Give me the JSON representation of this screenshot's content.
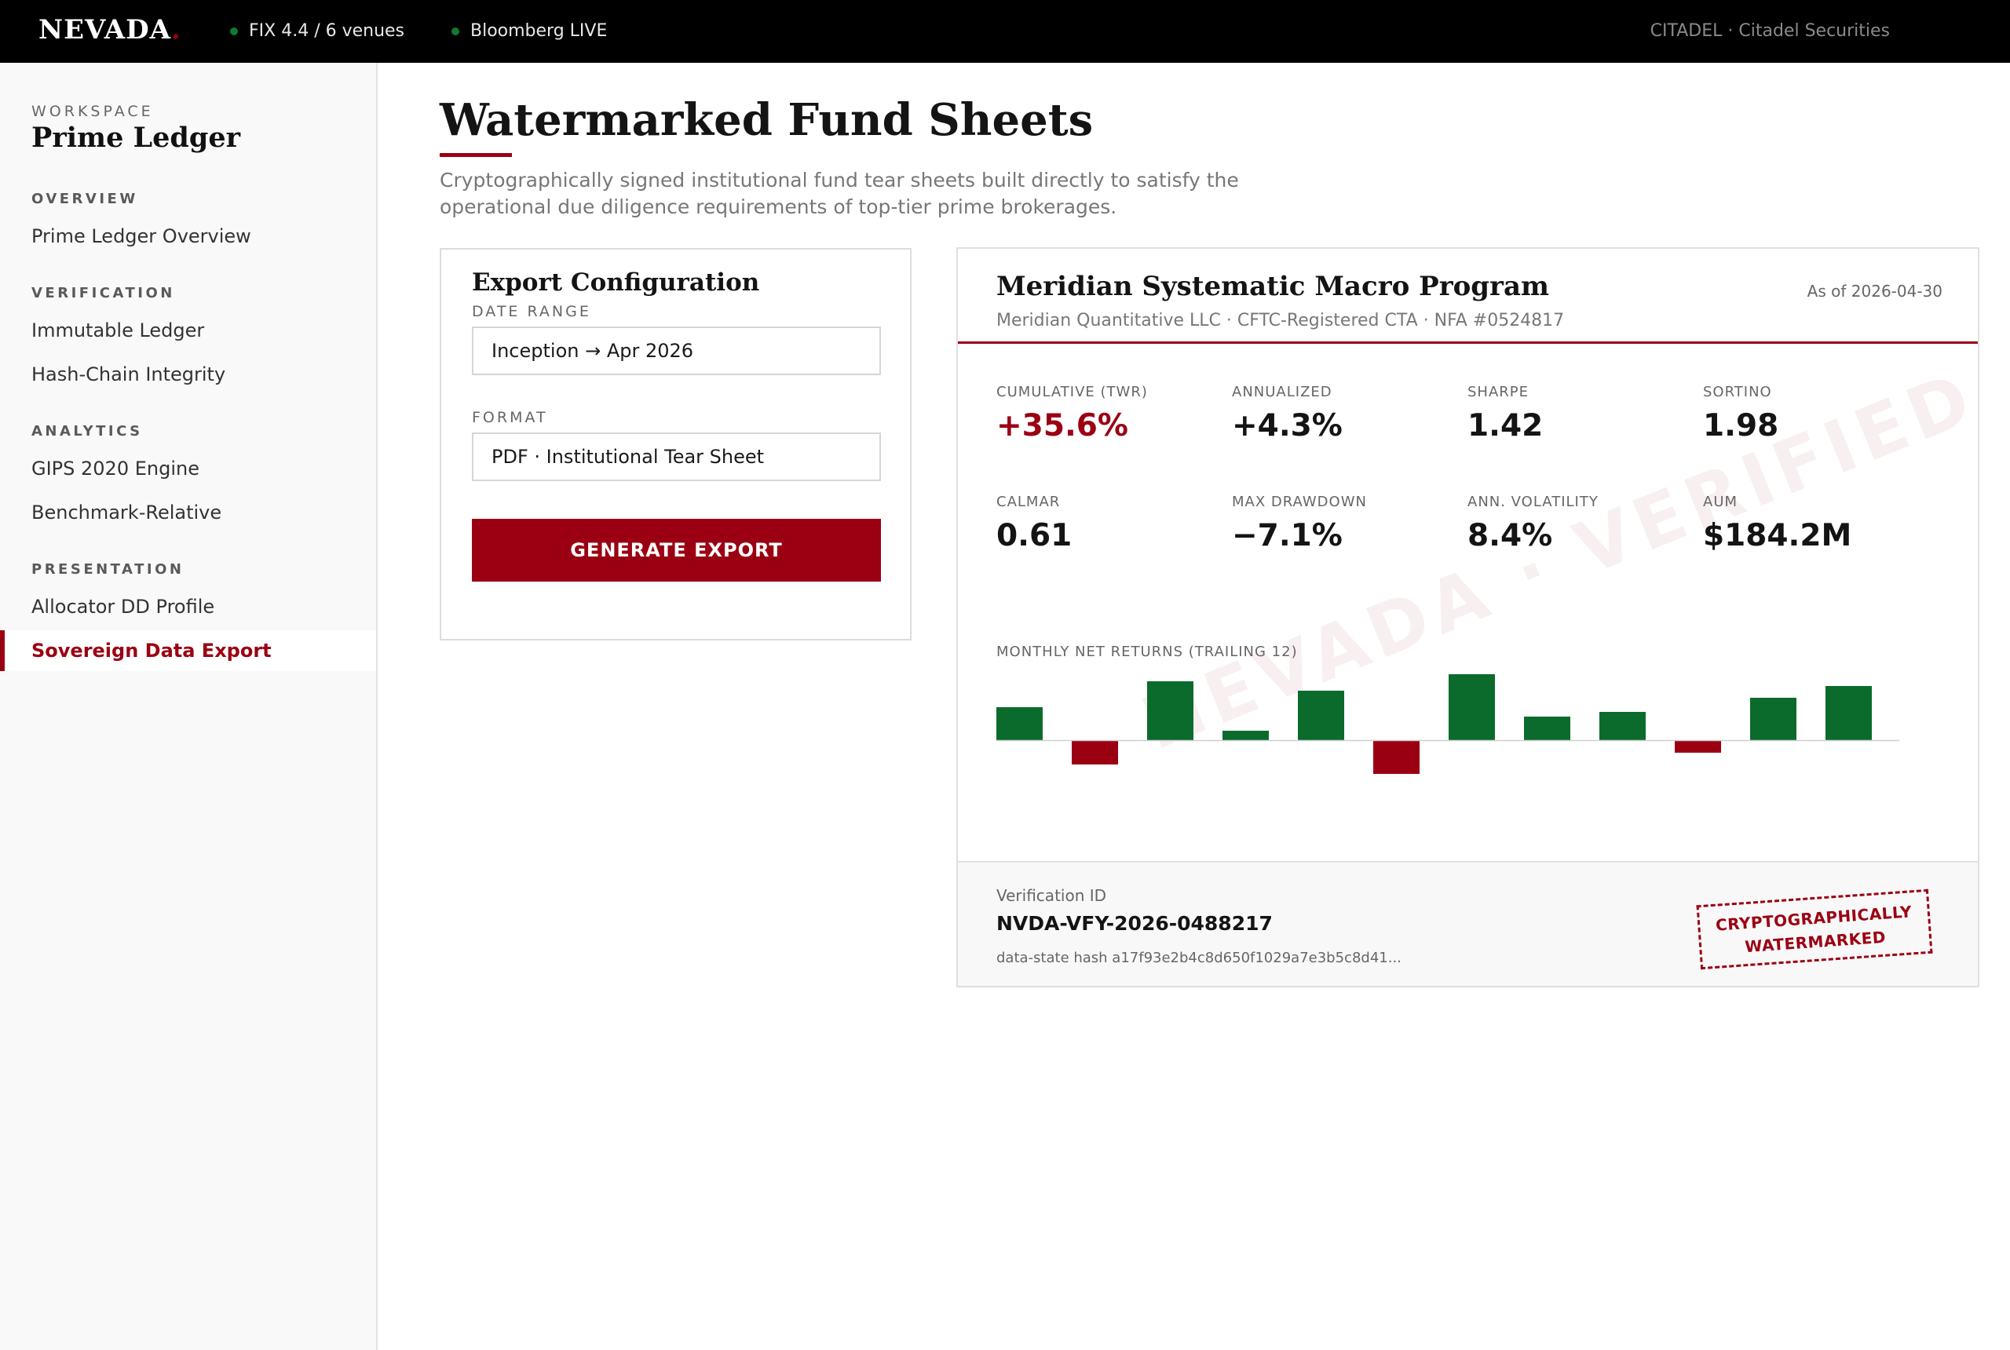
{
  "topbar": {
    "logo": "NEVADA",
    "logo_dot": ".",
    "status_fix": "FIX 4.4 / 6 venues",
    "status_bloomberg": "Bloomberg LIVE",
    "account": "CITADEL · Citadel Securities",
    "status_color": "#0e7a2e"
  },
  "sidebar": {
    "workspace_label": "WORKSPACE",
    "workspace_title": "Prime Ledger",
    "sections": [
      {
        "title": "OVERVIEW",
        "items": [
          "Prime Ledger Overview"
        ]
      },
      {
        "title": "VERIFICATION",
        "items": [
          "Immutable Ledger",
          "Hash-Chain Integrity"
        ]
      },
      {
        "title": "ANALYTICS",
        "items": [
          "GIPS 2020 Engine",
          "Benchmark-Relative"
        ]
      },
      {
        "title": "PRESENTATION",
        "items": [
          "Allocator DD Profile",
          "Sovereign Data Export"
        ]
      }
    ],
    "active_item": "Sovereign Data Export"
  },
  "main": {
    "title": "Watermarked Fund Sheets",
    "subtitle": "Cryptographically signed institutional fund tear sheets built directly to satisfy the operational due diligence requirements of top-tier prime brokerages."
  },
  "config": {
    "title": "Export Configuration",
    "date_range_label": "DATE RANGE",
    "date_range_value": "Inception → Apr 2026",
    "format_label": "FORMAT",
    "format_value": "PDF · Institutional Tear Sheet",
    "generate_label": "GENERATE EXPORT"
  },
  "sheet": {
    "fund_name": "Meridian Systematic Macro Program",
    "as_of": "As of 2026-04-30",
    "meta": "Meridian Quantitative LLC · CFTC-Registered CTA · NFA #0524817",
    "metrics": [
      {
        "label": "CUMULATIVE (TWR)",
        "value": "+35.6%"
      },
      {
        "label": "ANNUALIZED",
        "value": "+4.3%"
      },
      {
        "label": "SHARPE",
        "value": "1.42"
      },
      {
        "label": "SORTINO",
        "value": "1.98"
      },
      {
        "label": "CALMAR",
        "value": "0.61"
      },
      {
        "label": "MAX DRAWDOWN",
        "value": "−7.1%"
      },
      {
        "label": "ANN. VOLATILITY",
        "value": "8.4%"
      },
      {
        "label": "AUM",
        "value": "$184.2M"
      }
    ],
    "chart_label": "MONTHLY NET RETURNS (TRAILING 12)",
    "watermark": "NEVADA · VERIFIED",
    "verification_label": "Verification ID",
    "verification_id": "NVDA-VFY-2026-0488217",
    "hash": "data-state hash a17f93e2b4c8d650f1029a7e3b5c8d41...",
    "stamp_line1": "CRYPTOGRAPHICALLY",
    "stamp_line2": "WATERMARKED",
    "positive_color": "#0b6b2c",
    "negative_color": "#9b0012"
  },
  "chart_data": {
    "type": "bar",
    "title": "MONTHLY NET RETURNS (TRAILING 12)",
    "categories": [
      "1",
      "2",
      "3",
      "4",
      "5",
      "6",
      "7",
      "8",
      "9",
      "10",
      "11",
      "12"
    ],
    "values": [
      1.4,
      -1.0,
      2.5,
      0.4,
      2.1,
      -1.4,
      2.8,
      1.0,
      1.2,
      -0.5,
      1.8,
      2.3
    ],
    "ylim": [
      -2.5,
      3.5
    ],
    "grid": false
  }
}
